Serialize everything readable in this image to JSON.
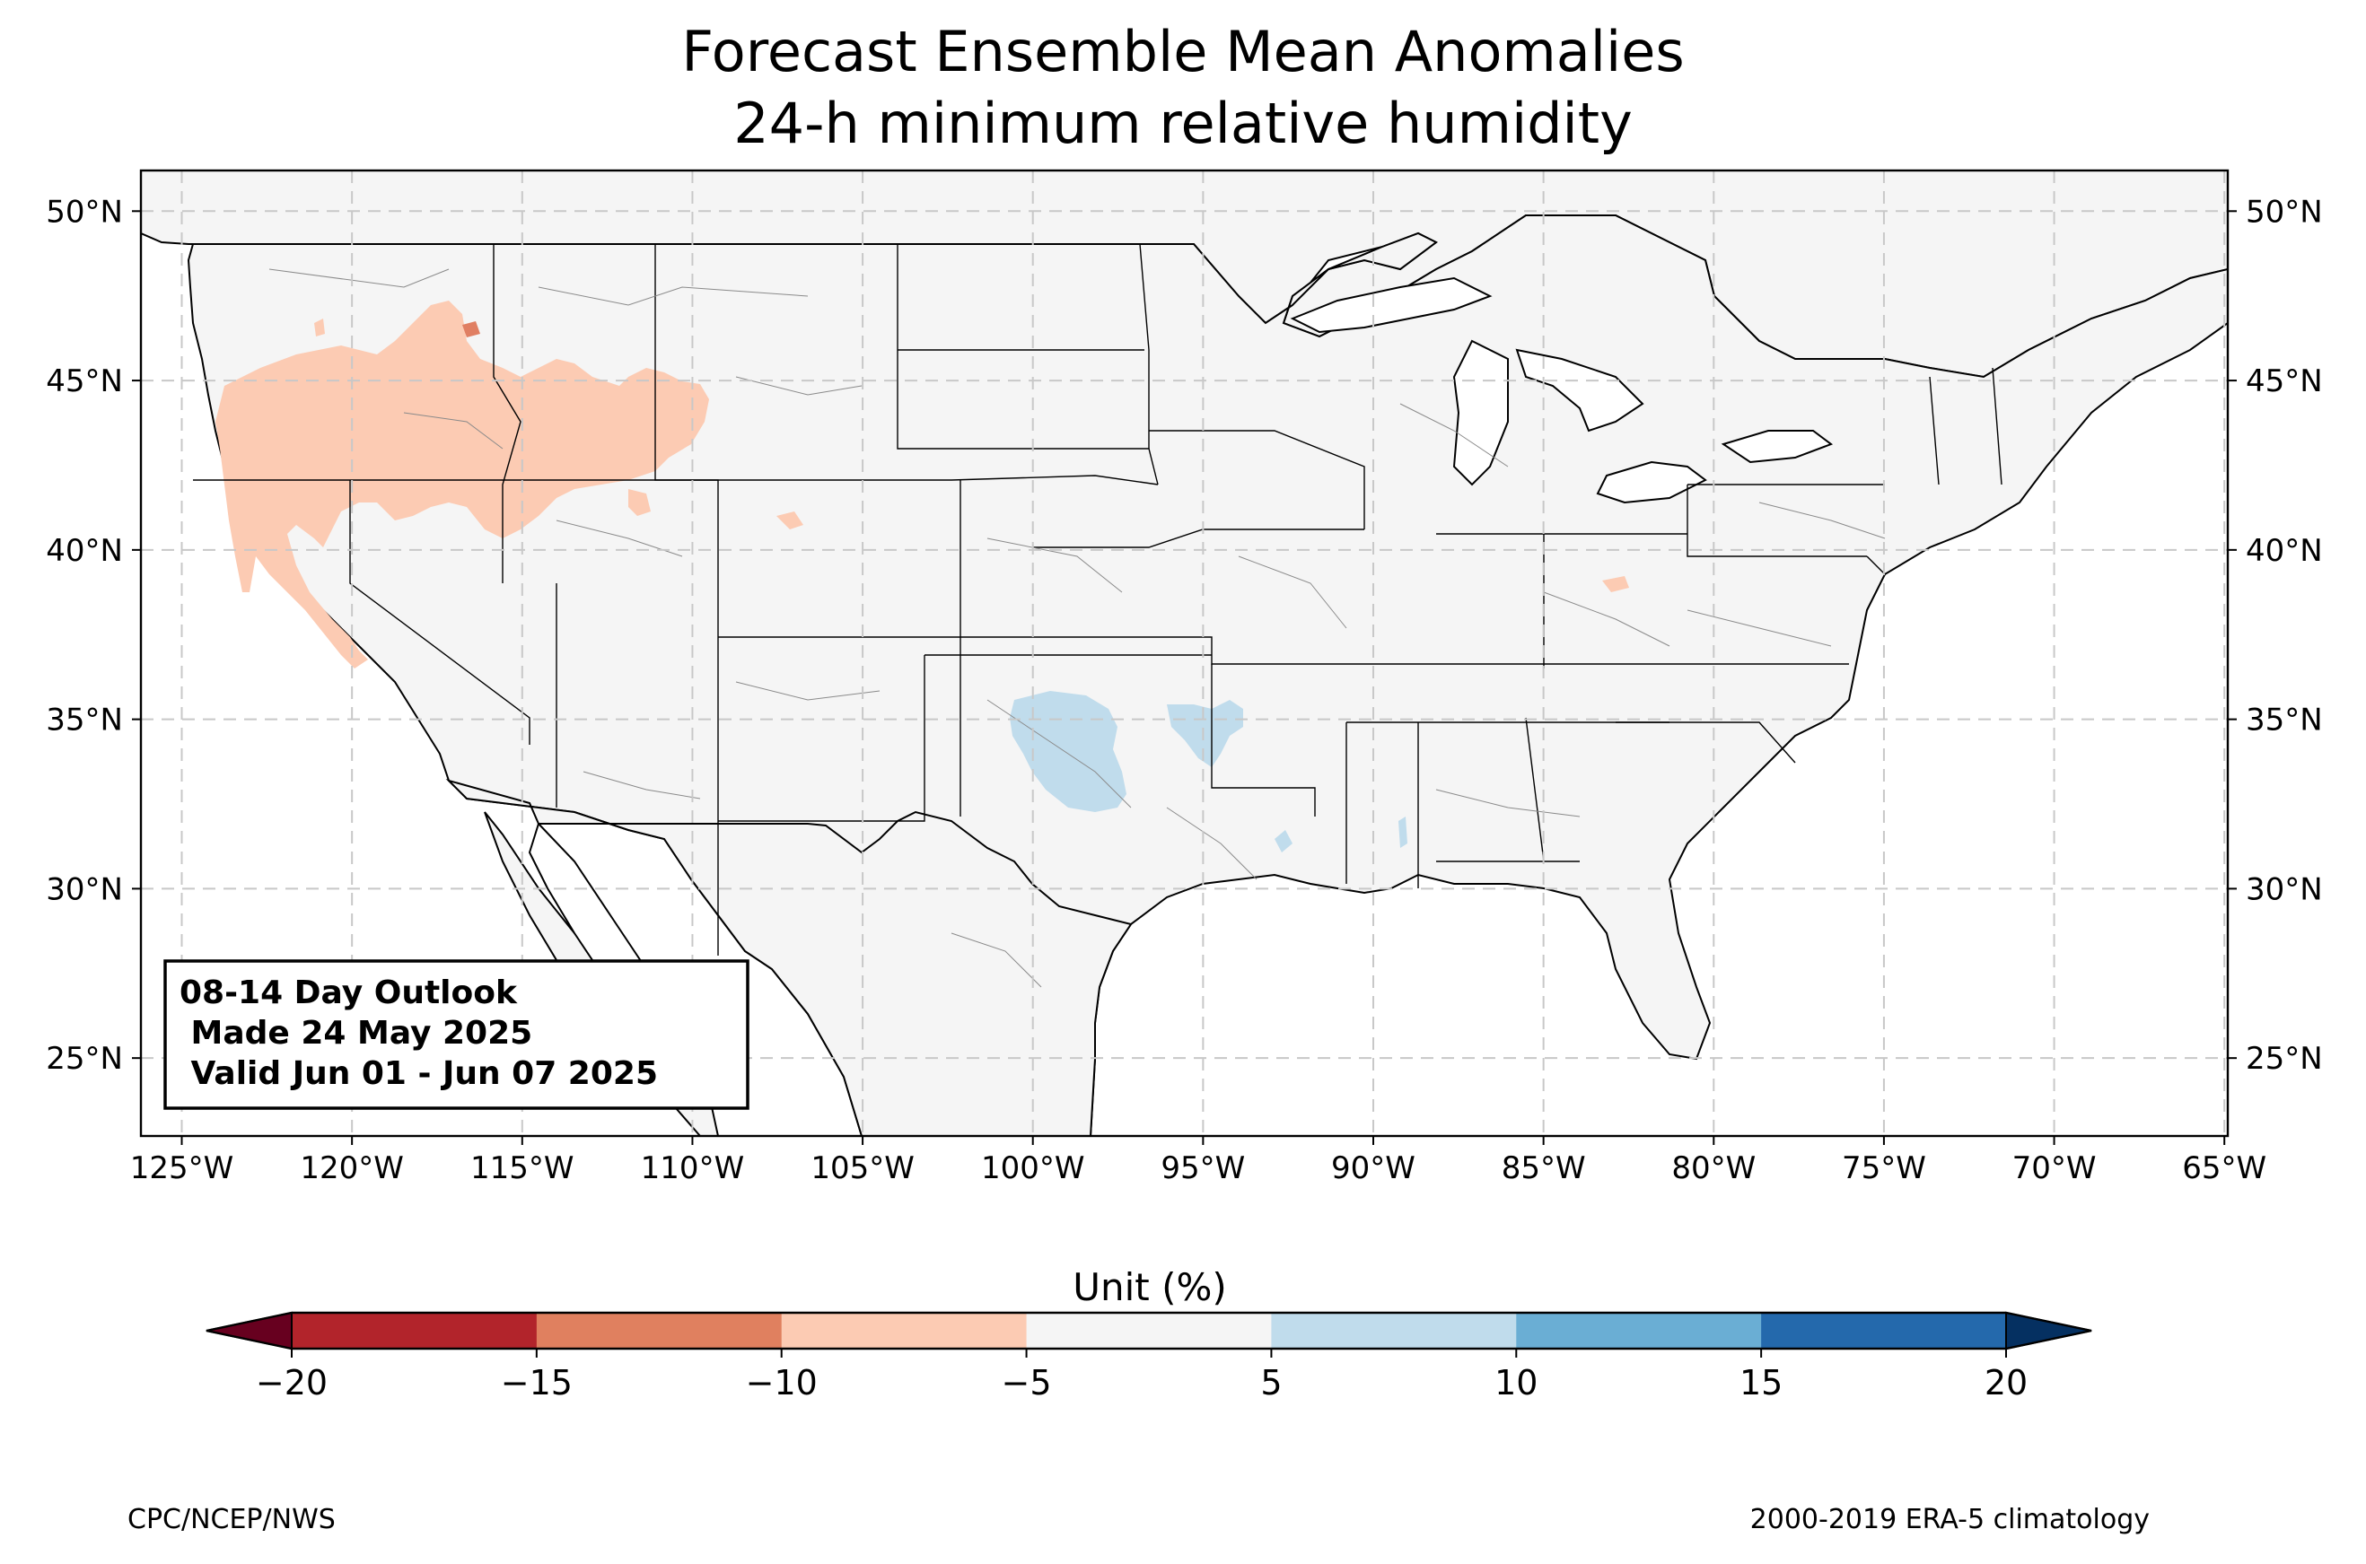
{
  "title": {
    "line1": "Forecast Ensemble Mean Anomalies",
    "line2": "24-h minimum relative humidity"
  },
  "map": {
    "region": "Contiguous United States",
    "lon_range": [
      -126.2,
      -64.9
    ],
    "lat_range": [
      22.7,
      51.2
    ],
    "lon_ticks": [
      -125,
      -120,
      -115,
      -110,
      -105,
      -100,
      -95,
      -90,
      -85,
      -80,
      -75,
      -70,
      -65
    ],
    "lon_tick_labels": [
      "125°W",
      "120°W",
      "115°W",
      "110°W",
      "105°W",
      "100°W",
      "95°W",
      "90°W",
      "85°W",
      "80°W",
      "75°W",
      "70°W",
      "65°W"
    ],
    "lat_ticks": [
      50,
      45,
      40,
      35,
      30,
      25
    ],
    "lat_tick_labels": [
      "50°N",
      "45°N",
      "40°N",
      "35°N",
      "30°N",
      "25°N"
    ],
    "gridlines": true,
    "land_color": "#f5f5f5",
    "anomaly_areas": [
      {
        "region": "Pacific Northwest / Great Basin / Idaho / Montana",
        "class": "-10 to -5",
        "color": "#fccbb3"
      },
      {
        "region": "Montana small core",
        "class": "-15 to -10",
        "color": "#e07f63"
      },
      {
        "region": "Western Oklahoma / Texas Panhandle",
        "class": "5 to 10",
        "color": "#c0dcec"
      },
      {
        "region": "Eastern Oklahoma / Arkansas border",
        "class": "5 to 10",
        "color": "#c0dcec"
      }
    ]
  },
  "outlook_box": {
    "line1": "08-14 Day Outlook",
    "line2": " Made 24 May 2025",
    "line3": " Valid Jun 01 - Jun 07 2025"
  },
  "colorbar": {
    "label": "Unit (%)",
    "ticks": [
      -20,
      -15,
      -10,
      -5,
      5,
      10,
      15,
      20
    ],
    "tick_labels": [
      "−20",
      "−15",
      "−10",
      "−5",
      "5",
      "10",
      "15",
      "20"
    ],
    "under_color": "#67001f",
    "over_color": "#053061",
    "colors": [
      "#b2242b",
      "#e0805f",
      "#fccbb3",
      "#f5f5f5",
      "#c0dcec",
      "#6aaed4",
      "#2469ac"
    ]
  },
  "credits": {
    "left": "CPC/NCEP/NWS",
    "right": "2000-2019 ERA-5 climatology"
  }
}
